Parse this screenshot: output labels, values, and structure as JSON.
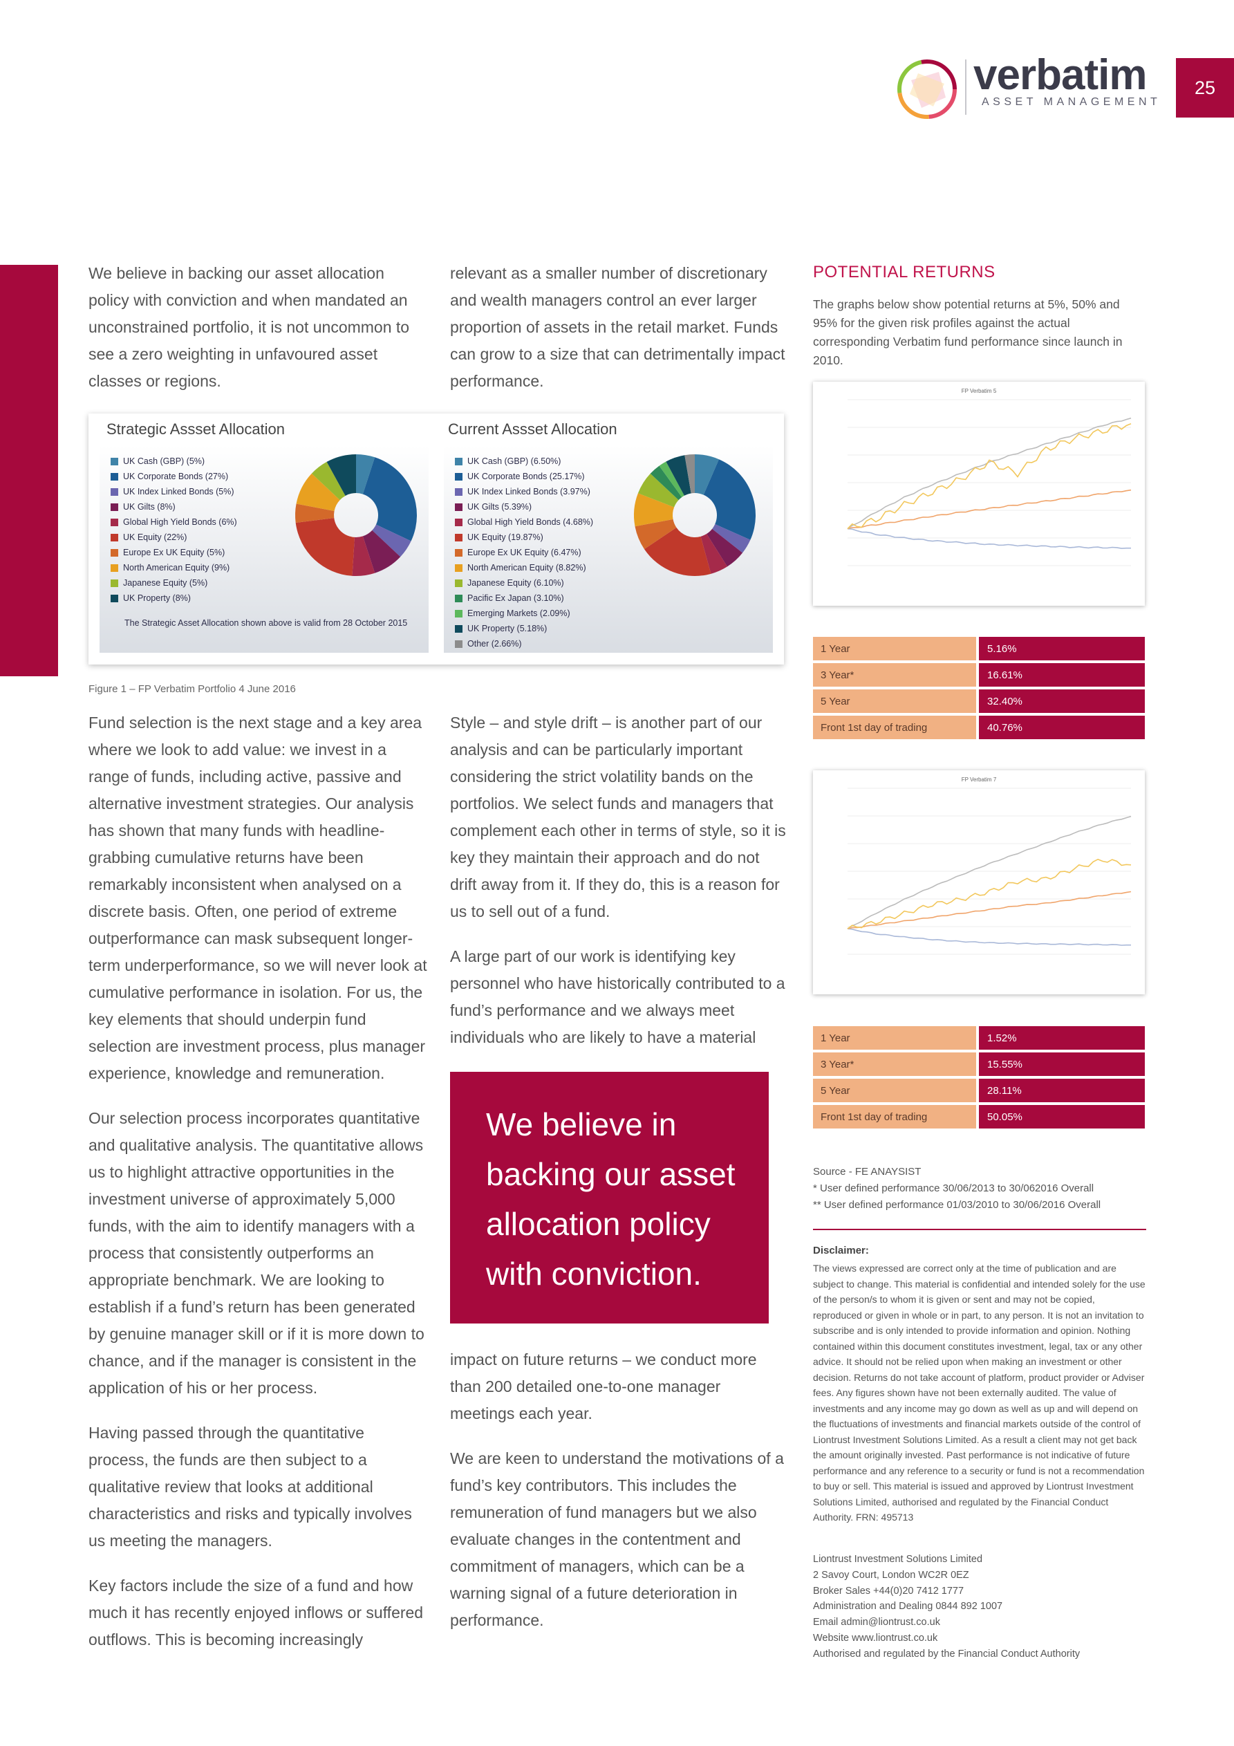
{
  "header": {
    "logo_word": "verbatim",
    "logo_sub": "ASSET MANAGEMENT",
    "page_number": "25",
    "brand_color": "#a6093d"
  },
  "col1_top": "We believe in backing our asset allocation policy with conviction and when mandated an unconstrained portfolio, it is not uncommon to see a zero weighting in unfavoured asset classes or regions.",
  "col2_top": "relevant as a smaller number of discretionary and wealth managers control an ever larger proportion of assets in the retail market. Funds can grow to a size that can detrimentally impact performance.",
  "figure": {
    "strategic_title": "Strategic Assset Allocation",
    "current_title": "Current Assset Allocation",
    "valid_note": "The Strategic Asset Allocation shown above is valid from 28 October 2015",
    "caption": "Figure 1 – FP Verbatim Portfolio 4 June 2016",
    "strategic": [
      {
        "label": "UK Cash (GBP) (5%)",
        "value": 5,
        "color": "#3f83a8"
      },
      {
        "label": "UK Corporate Bonds (27%)",
        "value": 27,
        "color": "#1d5e96"
      },
      {
        "label": "UK Index Linked Bonds (5%)",
        "value": 5,
        "color": "#6b66b0"
      },
      {
        "label": "UK Gilts (8%)",
        "value": 8,
        "color": "#7a1e55"
      },
      {
        "label": "Global High Yield Bonds (6%)",
        "value": 6,
        "color": "#a52a4a"
      },
      {
        "label": "UK Equity (22%)",
        "value": 22,
        "color": "#c0392b"
      },
      {
        "label": "Europe Ex UK Equity (5%)",
        "value": 5,
        "color": "#d3692a"
      },
      {
        "label": "North American Equity (9%)",
        "value": 9,
        "color": "#e8a020"
      },
      {
        "label": "Japanese Equity (5%)",
        "value": 5,
        "color": "#9ab82f"
      },
      {
        "label": "UK Property (8%)",
        "value": 8,
        "color": "#0f4a5c"
      }
    ],
    "current": [
      {
        "label": "UK Cash (GBP) (6.50%)",
        "value": 6.5,
        "color": "#3f83a8"
      },
      {
        "label": "UK Corporate Bonds (25.17%)",
        "value": 25.17,
        "color": "#1d5e96"
      },
      {
        "label": "UK Index Linked Bonds (3.97%)",
        "value": 3.97,
        "color": "#6b66b0"
      },
      {
        "label": "UK Gilts (5.39%)",
        "value": 5.39,
        "color": "#7a1e55"
      },
      {
        "label": "Global High Yield Bonds (4.68%)",
        "value": 4.68,
        "color": "#a52a4a"
      },
      {
        "label": "UK Equity (19.87%)",
        "value": 19.87,
        "color": "#c0392b"
      },
      {
        "label": "Europe Ex UK Equity (6.47%)",
        "value": 6.47,
        "color": "#d3692a"
      },
      {
        "label": "North American Equity (8.82%)",
        "value": 8.82,
        "color": "#e8a020"
      },
      {
        "label": "Japanese Equity (6.10%)",
        "value": 6.1,
        "color": "#9ab82f"
      },
      {
        "label": "Pacific Ex Japan (3.10%)",
        "value": 3.1,
        "color": "#2e8b57"
      },
      {
        "label": "Emerging Markets (2.09%)",
        "value": 2.09,
        "color": "#5cb85c"
      },
      {
        "label": "UK Property (5.18%)",
        "value": 5.18,
        "color": "#0f4a5c"
      },
      {
        "label": "Other (2.66%)",
        "value": 2.66,
        "color": "#8c8c8c"
      }
    ]
  },
  "col1_paragraphs": [
    "Fund selection is the next stage and a key area where we look to add value: we invest in a range of funds, including active, passive and alternative investment strategies. Our analysis has shown that many funds with headline-grabbing cumulative returns have been remarkably inconsistent when analysed on a discrete basis. Often, one period of extreme outperformance can mask subsequent longer-term underperformance, so we will never look at cumulative performance in isolation. For us, the key elements that should underpin fund selection are investment process, plus manager experience, knowledge and remuneration.",
    "Our selection process incorporates quantitative and qualitative analysis. The quantitative allows us to highlight attractive opportunities in the investment universe of approximately 5,000 funds, with the aim to identify managers with a process that consistently outperforms an appropriate benchmark. We are looking to establish if a fund’s return has been generated by genuine manager skill or if it is more down to chance, and if the manager is consistent in the application of his or her process.",
    "Having passed through the quantitative process, the funds are then subject to a qualitative review that looks at additional characteristics and risks and typically involves us meeting the managers.",
    "Key factors include the size of a fund and how much it has recently enjoyed inflows or suffered outflows. This is becoming increasingly"
  ],
  "col2_paragraphs_a": [
    "Style – and style drift – is another part of our analysis and can be particularly important considering the strict volatility bands on the portfolios. We select funds and managers that complement each other in terms of style, so it is key they maintain their approach and do not drift away from it. If they do, this is a reason for us to sell out of a fund.",
    "A large part of our work is identifying key personnel who have historically contributed to a fund’s performance and we always meet individuals who are likely to have a material"
  ],
  "quote": "We believe in backing our asset allocation policy with conviction.",
  "col2_paragraphs_b": [
    "impact on future returns – we conduct more than 200 detailed one-to-one manager meetings each year.",
    "We are keen to understand the motivations of a fund’s key contributors. This includes the remuneration of fund managers but we also evaluate changes in the contentment and commitment of managers, which can be a warning signal of a future deterioration in performance."
  ],
  "potential_returns": {
    "title": "POTENTIAL RETURNS",
    "intro": "The graphs below show potential returns at 5%, 50% and 95% for the given risk profiles against the actual corresponding Verbatim fund performance since launch in 2010.",
    "table1": [
      {
        "label": "1 Year",
        "value": "5.16%"
      },
      {
        "label": "3 Year*",
        "value": "16.61%"
      },
      {
        "label": "5 Year",
        "value": "32.40%"
      },
      {
        "label": "Front 1st day of trading",
        "value": "40.76%"
      }
    ],
    "table2": [
      {
        "label": "1 Year",
        "value": "1.52%"
      },
      {
        "label": "3 Year*",
        "value": "15.55%"
      },
      {
        "label": "5 Year",
        "value": "28.11%"
      },
      {
        "label": "Front 1st day of trading",
        "value": "50.05%"
      }
    ],
    "source": "Source - FE ANAYSIST",
    "footnote1": "*   User defined performance 30/06/2013 to 30/062016 Overall",
    "footnote2": "** User defined performance 01/03/2010 to 30/06/2016 Overall"
  },
  "chart_data": [
    {
      "type": "line",
      "title": "FP Verbatim 5",
      "series": [
        {
          "name": "",
          "color": "#a9b8d8",
          "values": [
            10000,
            9700,
            9500,
            9350,
            9250,
            9150,
            9100,
            9050,
            9000,
            8980,
            8950
          ]
        },
        {
          "name": "",
          "color": "#f0a46a",
          "values": [
            10000,
            10220,
            10450,
            10680,
            10900,
            11100,
            11300,
            11500,
            11700,
            11900,
            12100
          ]
        },
        {
          "name": "",
          "color": "#bbbbbb",
          "values": [
            10000,
            10900,
            11700,
            12400,
            13000,
            13600,
            14100,
            14600,
            15100,
            15600,
            16000
          ]
        },
        {
          "name": "",
          "color": "#f2c75c",
          "values": [
            10000,
            10500,
            11300,
            12000,
            12700,
            13600,
            13000,
            14300,
            14900,
            15300,
            15700
          ]
        }
      ]
    },
    {
      "type": "line",
      "title": "FP Verbatim 7",
      "series": [
        {
          "name": "",
          "color": "#a9b8d8",
          "values": [
            10000,
            9600,
            9350,
            9150,
            9000,
            8900,
            8850,
            8800,
            8780,
            8750,
            8720
          ]
        },
        {
          "name": "",
          "color": "#f0a46a",
          "values": [
            10000,
            10300,
            10600,
            10900,
            11200,
            11500,
            11800,
            12000,
            12300,
            12600,
            12900
          ]
        },
        {
          "name": "",
          "color": "#bbbbbb",
          "values": [
            10000,
            11200,
            12300,
            13300,
            14200,
            15100,
            15900,
            16700,
            17500,
            18200,
            18800
          ]
        },
        {
          "name": "",
          "color": "#f2c75c",
          "values": [
            10000,
            10500,
            11200,
            11900,
            12300,
            12900,
            13700,
            13900,
            14700,
            15400,
            15000
          ]
        }
      ]
    }
  ],
  "disclaimer": {
    "title": "Disclaimer:",
    "text": "The views expressed are correct only at the time of publication and are subject to change. This material is confidential and intended solely for the use of the person/s to whom it is given or sent and may not be copied, reproduced or given in whole or in part, to any person. It is not an invitation to subscribe and is only intended to provide information and opinion. Nothing contained within this document constitutes investment, legal, tax or any other advice. It should not be relied upon when making an investment or other decision. Returns do not take account of platform, product provider or Adviser fees. Any figures shown have not been externally audited. The value of investments and any income may go down as well as up and will depend on the fluctuations of investments and financial markets outside of the control of Liontrust Investment Solutions Limited. As a result a client may not get back the amount originally invested. Past performance is not indicative of future performance and any reference to a security or fund is not a recommendation to buy or sell. This material is issued and approved by Liontrust Investment Solutions Limited, authorised and regulated by the Financial Conduct Authority. FRN: 495713"
  },
  "contact": [
    "Liontrust Investment Solutions Limited",
    "2 Savoy Court, London WC2R 0EZ",
    "Broker Sales +44(0)20 7412 1777",
    "Administration and Dealing 0844 892 1007",
    "Email admin@liontrust.co.uk",
    "Website www.liontrust.co.uk",
    "Authorised and regulated by the Financial Conduct Authority"
  ]
}
